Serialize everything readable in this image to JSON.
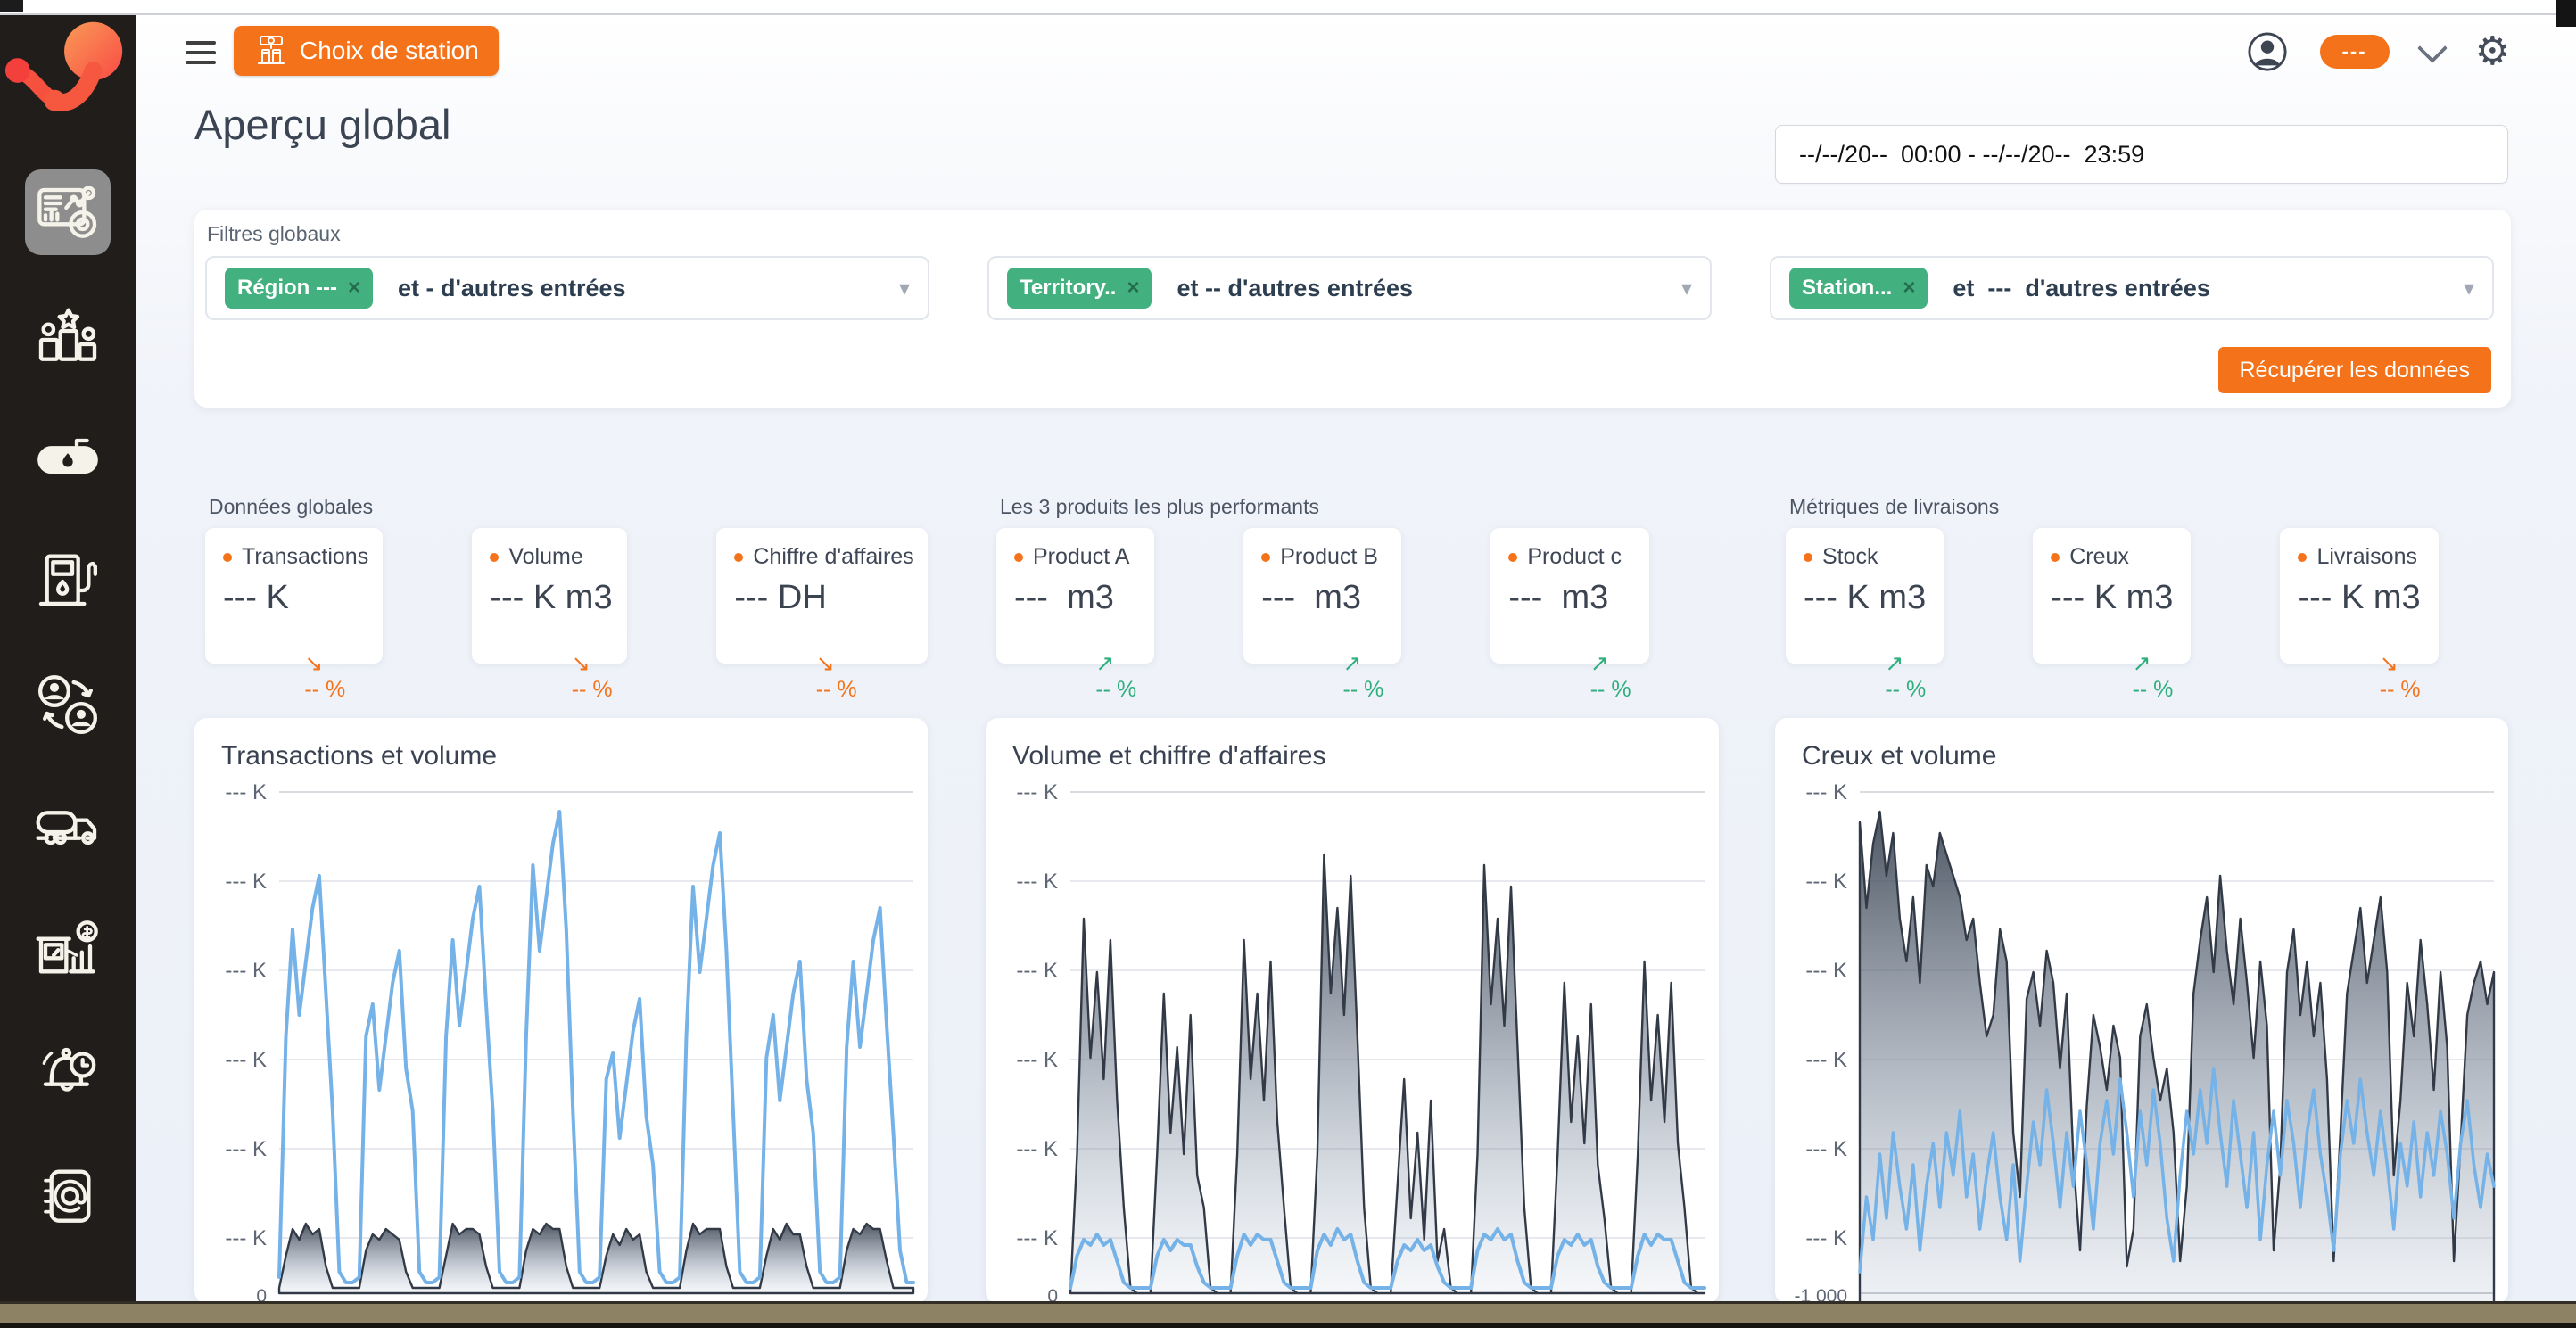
{
  "colors": {
    "accent_orange": "#f4731a",
    "tag_green": "#42b07f",
    "up_green": "#2eae7c",
    "down_orange": "#f4731a",
    "line_blue": "#74b2e8",
    "area_dark": "#3e4657",
    "sidebar_bg": "#211d1a"
  },
  "sidebar": {
    "icons": [
      "analytics-dashboard-icon",
      "podium-ranking-icon",
      "fuel-tank-icon",
      "fuel-pump-icon",
      "customers-exchange-icon",
      "tanker-truck-icon",
      "station-sales-icon",
      "alerts-bell-icon",
      "contacts-book-icon"
    ]
  },
  "header": {
    "station_button": "Choix de station",
    "user_pill": "---"
  },
  "page": {
    "title": "Aperçu global",
    "date_range": "--/--/20--  00:00 - --/--/20--  23:59",
    "filters": {
      "label": "Filtres globaux",
      "selects": [
        {
          "tag": "Région ---",
          "text": "et - d'autres entrées"
        },
        {
          "tag": "Territory..",
          "text": "et -- d'autres entrées"
        },
        {
          "tag": "Station...",
          "text": "et  ---  d'autres entrées"
        }
      ],
      "submit": "Récupérer les données"
    },
    "kpi_groups": [
      {
        "label": "Données globales",
        "cards": [
          {
            "label": "Transactions",
            "value": "--- K",
            "trend_arrow": "↘",
            "trend_text": "-- %",
            "dir": "down"
          },
          {
            "label": "Volume",
            "value": "--- K m3",
            "trend_arrow": "↘",
            "trend_text": "-- %",
            "dir": "down"
          },
          {
            "label": "Chiffre d'affaires",
            "value": "--- DH",
            "trend_arrow": "↘",
            "trend_text": "-- %",
            "dir": "down"
          }
        ]
      },
      {
        "label": "Les 3 produits les plus performants",
        "cards": [
          {
            "label": "Product A",
            "value": "---  m3",
            "trend_arrow": "↗",
            "trend_text": "-- %",
            "dir": "up"
          },
          {
            "label": "Product B",
            "value": "---  m3",
            "trend_arrow": "↗",
            "trend_text": "-- %",
            "dir": "up"
          },
          {
            "label": "Product c",
            "value": "---  m3",
            "trend_arrow": "↗",
            "trend_text": "-- %",
            "dir": "up"
          }
        ]
      },
      {
        "label": "Métriques de livraisons",
        "cards": [
          {
            "label": "Stock",
            "value": "--- K m3",
            "trend_arrow": "↗",
            "trend_text": "-- %",
            "dir": "up"
          },
          {
            "label": "Creux",
            "value": "--- K m3",
            "trend_arrow": "↗",
            "trend_text": "-- %",
            "dir": "up"
          },
          {
            "label": "Livraisons",
            "value": "--- K m3",
            "trend_arrow": "↘",
            "trend_text": "-- %",
            "dir": "down"
          }
        ]
      }
    ]
  },
  "chart_data": [
    {
      "type": "area",
      "title": "Transactions et volume",
      "note": "y-axis tick values are masked placeholders in the UI; series values are normalized estimates 0-100",
      "y_ticks": [
        "--- K",
        "--- K",
        "--- K",
        "--- K",
        "--- K",
        "--- K"
      ],
      "y_bottom_label": "0",
      "series": [
        {
          "name": "volume",
          "kind": "area",
          "color": "#3e4657",
          "values": [
            1,
            7,
            12,
            10,
            13,
            11,
            12,
            5,
            1,
            1,
            1,
            1,
            1,
            8,
            11,
            10,
            12,
            11,
            10,
            4,
            1,
            1,
            1,
            1,
            1,
            7,
            13,
            11,
            12,
            12,
            11,
            5,
            1,
            1,
            1,
            1,
            1,
            8,
            12,
            11,
            13,
            12,
            12,
            5,
            1,
            1,
            1,
            1,
            1,
            7,
            11,
            9,
            12,
            10,
            11,
            4,
            1,
            1,
            1,
            1,
            1,
            8,
            13,
            11,
            12,
            12,
            12,
            5,
            1,
            1,
            1,
            1,
            1,
            7,
            12,
            10,
            13,
            11,
            11,
            5,
            1,
            1,
            1,
            1,
            1,
            8,
            12,
            11,
            13,
            12,
            12,
            6,
            1,
            1,
            1,
            1
          ]
        },
        {
          "name": "transactions",
          "kind": "line",
          "color": "#74b2e8",
          "width": 4,
          "values": [
            3,
            48,
            68,
            52,
            62,
            72,
            78,
            56,
            34,
            4,
            2,
            2,
            3,
            48,
            54,
            38,
            48,
            58,
            64,
            42,
            34,
            4,
            2,
            2,
            3,
            48,
            66,
            50,
            60,
            70,
            76,
            54,
            34,
            4,
            2,
            2,
            3,
            48,
            80,
            64,
            74,
            84,
            90,
            68,
            34,
            4,
            2,
            2,
            3,
            40,
            45,
            29,
            39,
            49,
            55,
            33,
            24,
            4,
            2,
            2,
            3,
            48,
            76,
            60,
            70,
            80,
            86,
            64,
            34,
            4,
            2,
            2,
            3,
            44,
            52,
            36,
            46,
            56,
            62,
            40,
            30,
            4,
            2,
            2,
            3,
            46,
            62,
            46,
            56,
            66,
            72,
            50,
            30,
            8,
            2,
            2
          ]
        }
      ]
    },
    {
      "type": "area",
      "title": "Volume et chiffre d'affaires",
      "note": "y-axis tick values are masked placeholders in the UI; series values are normalized estimates 0-100",
      "y_ticks": [
        "--- K",
        "--- K",
        "--- K",
        "--- K",
        "--- K",
        "--- K"
      ],
      "y_bottom_label": "0",
      "series": [
        {
          "name": "volume",
          "kind": "area",
          "color": "#3e4657",
          "values": [
            0,
            26,
            70,
            44,
            60,
            40,
            66,
            36,
            16,
            1,
            0,
            0,
            0,
            26,
            56,
            30,
            46,
            26,
            52,
            22,
            16,
            1,
            0,
            0,
            0,
            26,
            66,
            40,
            56,
            36,
            62,
            32,
            16,
            1,
            0,
            0,
            0,
            26,
            82,
            56,
            72,
            52,
            78,
            48,
            16,
            1,
            0,
            0,
            0,
            20,
            40,
            14,
            30,
            10,
            36,
            6,
            12,
            1,
            0,
            0,
            0,
            26,
            80,
            54,
            70,
            50,
            76,
            46,
            16,
            1,
            0,
            0,
            0,
            26,
            58,
            32,
            48,
            28,
            54,
            24,
            14,
            1,
            0,
            0,
            0,
            26,
            62,
            36,
            52,
            32,
            58,
            28,
            16,
            1,
            0,
            0
          ]
        },
        {
          "name": "chiffre_d_affaires",
          "kind": "line",
          "color": "#74b2e8",
          "width": 4,
          "values": [
            1,
            7,
            10,
            9,
            11,
            9,
            10,
            6,
            2,
            1,
            1,
            1,
            1,
            7,
            10,
            8,
            10,
            9,
            9,
            5,
            2,
            1,
            1,
            1,
            1,
            7,
            11,
            9,
            11,
            10,
            10,
            6,
            2,
            1,
            1,
            1,
            1,
            8,
            11,
            9,
            12,
            10,
            11,
            6,
            2,
            1,
            1,
            1,
            1,
            6,
            9,
            8,
            10,
            8,
            9,
            5,
            2,
            1,
            1,
            1,
            1,
            8,
            11,
            10,
            12,
            10,
            11,
            6,
            2,
            1,
            1,
            1,
            1,
            7,
            10,
            9,
            11,
            9,
            10,
            5,
            2,
            1,
            1,
            1,
            1,
            7,
            11,
            9,
            11,
            10,
            10,
            6,
            2,
            1,
            1,
            1
          ]
        }
      ]
    },
    {
      "type": "area",
      "title": "Creux et volume",
      "note": "y-axis tick values are masked placeholders in the UI; series values are normalized estimates 0-100",
      "y_ticks": [
        "--- K",
        "--- K",
        "--- K",
        "--- K",
        "--- K",
        "--- K"
      ],
      "y_bottom_label": "-1 000",
      "series": [
        {
          "name": "creux",
          "kind": "area",
          "color": "#3e4657",
          "base": 700,
          "values": [
            88,
            72,
            84,
            90,
            78,
            86,
            70,
            62,
            74,
            58,
            80,
            76,
            86,
            82,
            78,
            74,
            66,
            70,
            58,
            48,
            52,
            68,
            62,
            30,
            18,
            55,
            60,
            50,
            64,
            58,
            42,
            56,
            25,
            8,
            35,
            52,
            46,
            38,
            50,
            44,
            5,
            12,
            48,
            54,
            44,
            36,
            42,
            30,
            6,
            20,
            56,
            66,
            74,
            60,
            78,
            64,
            54,
            70,
            58,
            44,
            62,
            50,
            8,
            24,
            60,
            68,
            52,
            62,
            48,
            58,
            40,
            6,
            30,
            56,
            64,
            72,
            58,
            66,
            74,
            60,
            22,
            36,
            58,
            48,
            66,
            54,
            38,
            60,
            46,
            6,
            28,
            52,
            58,
            62,
            54,
            60
          ]
        },
        {
          "name": "volume",
          "kind": "line",
          "color": "#74b2e8",
          "width": 3.5,
          "values": [
            4,
            18,
            10,
            26,
            14,
            30,
            20,
            12,
            24,
            8,
            20,
            28,
            16,
            30,
            22,
            34,
            18,
            26,
            12,
            22,
            30,
            18,
            10,
            24,
            6,
            20,
            32,
            24,
            38,
            28,
            16,
            30,
            20,
            34,
            24,
            12,
            28,
            36,
            26,
            40,
            30,
            18,
            34,
            24,
            38,
            28,
            14,
            6,
            22,
            34,
            26,
            38,
            28,
            42,
            30,
            20,
            36,
            26,
            16,
            30,
            10,
            24,
            34,
            22,
            36,
            28,
            16,
            30,
            38,
            26,
            18,
            8,
            26,
            36,
            28,
            40,
            30,
            22,
            34,
            24,
            12,
            28,
            20,
            32,
            18,
            30,
            22,
            34,
            26,
            14,
            28,
            36,
            24,
            16,
            26,
            20
          ]
        }
      ]
    }
  ]
}
